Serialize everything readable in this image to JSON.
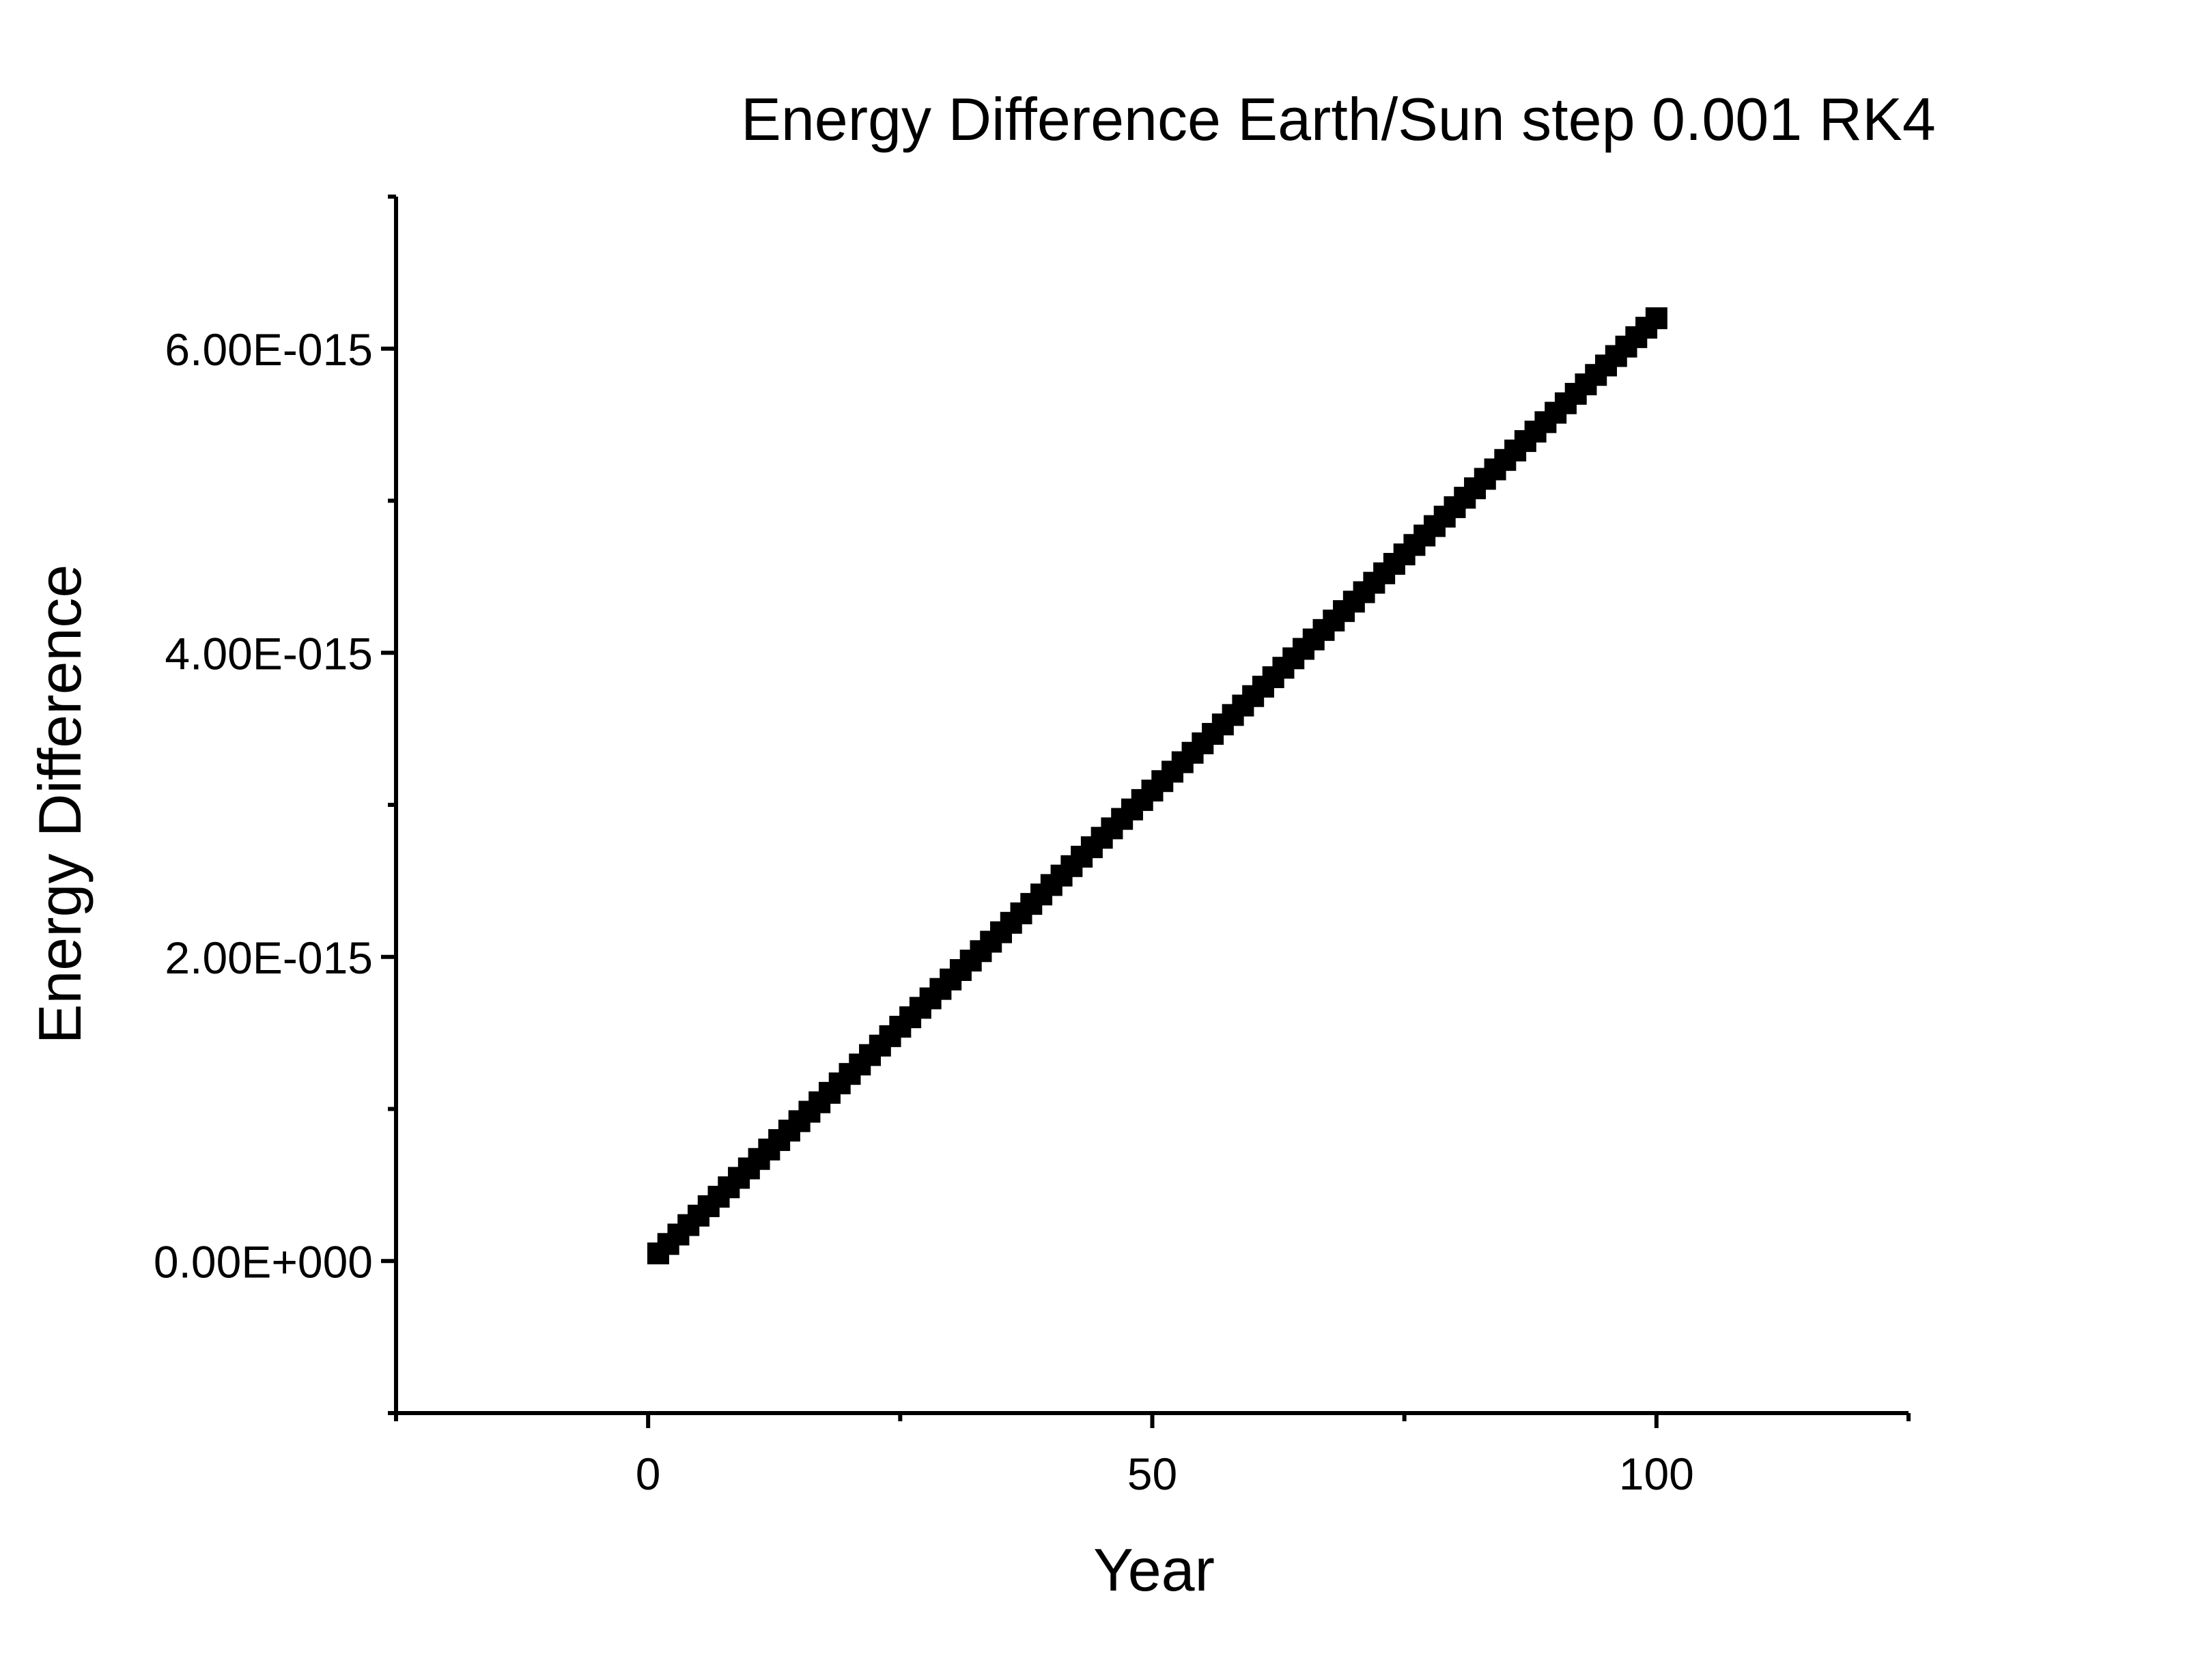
{
  "chart_data": {
    "type": "scatter",
    "title": "Energy Difference Earth/Sun step 0.001 RK4",
    "xlabel": "Year",
    "ylabel": "Energy Difference",
    "xlim": [
      -25,
      125
    ],
    "ylim": [
      -1e-15,
      7e-15
    ],
    "xticks": [
      0,
      50,
      100
    ],
    "xtick_labels": [
      "0",
      "50",
      "100"
    ],
    "yticks": [
      0,
      2e-15,
      4e-15,
      6e-15
    ],
    "ytick_labels": [
      "0.00E+000",
      "2.00E-015",
      "4.00E-015",
      "6.00E-015"
    ],
    "grid": false,
    "legend": "none",
    "marker": "square",
    "color": "#000000",
    "series": [
      {
        "x_start": 1,
        "x_end": 100,
        "x_step": 1,
        "y_start": 5e-17,
        "y_end": 6.2e-15
      }
    ]
  }
}
